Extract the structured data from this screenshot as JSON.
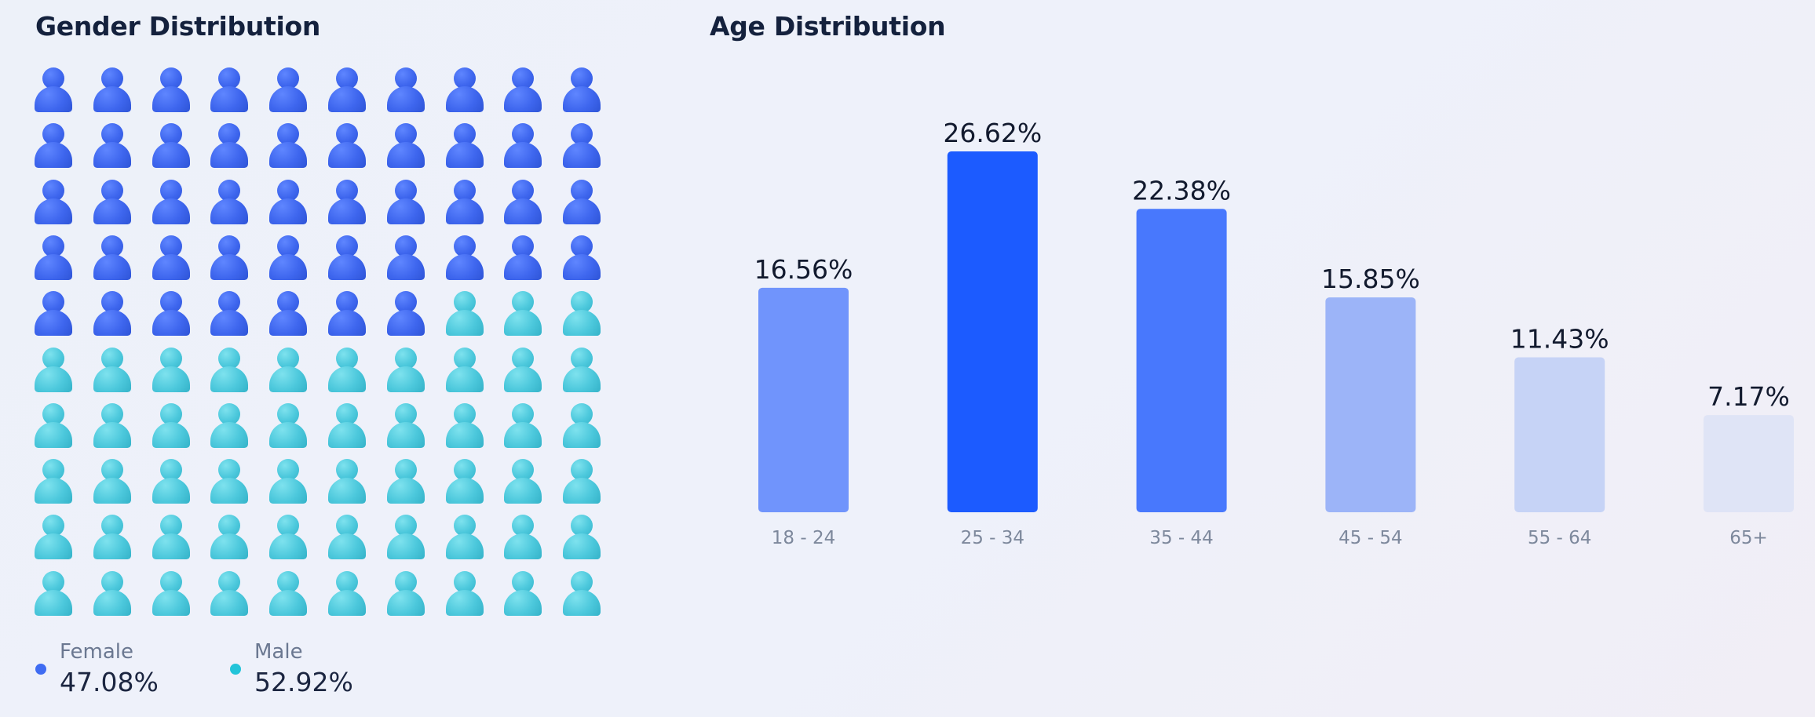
{
  "gender_panel": {
    "title": "Gender Distribution",
    "grid": {
      "rows": 10,
      "cols": 10,
      "female_icons": 47
    },
    "legend": [
      {
        "label": "Female",
        "value": "47.08%",
        "color": "#3f6cf2",
        "icon": "person-icon"
      },
      {
        "label": "Male",
        "value": "52.92%",
        "color": "#22c4d9",
        "icon": "person-icon"
      }
    ]
  },
  "age_panel": {
    "title": "Age Distribution"
  },
  "chart_data": [
    {
      "type": "waffle",
      "title": "Gender Distribution",
      "categories": [
        "Female",
        "Male"
      ],
      "values": [
        47.08,
        52.92
      ],
      "unit": "%",
      "grid": "10x10",
      "colors": [
        "#3f6cf2",
        "#4cc8dc"
      ],
      "legend": "bottom"
    },
    {
      "type": "bar",
      "title": "Age Distribution",
      "categories": [
        "18 - 24",
        "25 - 34",
        "35 - 44",
        "45 - 54",
        "55 - 64",
        "65+"
      ],
      "values": [
        16.56,
        26.62,
        22.38,
        15.85,
        11.43,
        7.17
      ],
      "labels": [
        "16.56%",
        "26.62%",
        "22.38%",
        "15.85%",
        "11.43%",
        "7.17%"
      ],
      "colors": [
        "#7094fc",
        "#1c5bff",
        "#4878fd",
        "#9cb4f8",
        "#c6d3f6",
        "#dfe4f6"
      ],
      "xlabel": "",
      "ylabel": "",
      "ylim": [
        0,
        26.62
      ],
      "grid": false
    }
  ]
}
